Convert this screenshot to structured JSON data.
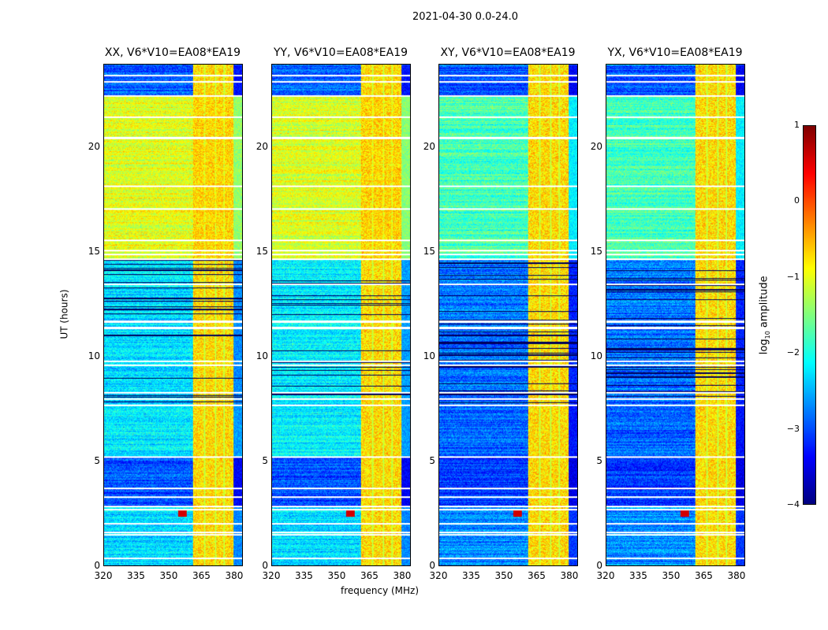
{
  "chart_data": {
    "type": "heatmap",
    "suptitle": "2021-04-30 0.0-24.0",
    "xlabel": "frequency (MHz)",
    "ylabel": "UT (hours)",
    "xlim": [
      320,
      384
    ],
    "ylim": [
      0,
      24
    ],
    "xticks": [
      "320",
      "335",
      "350",
      "365",
      "380"
    ],
    "yticks": [
      "0",
      "5",
      "10",
      "15",
      "20"
    ],
    "colorbar": {
      "label": "log10 amplitude",
      "label_main": "log",
      "label_sub": "10",
      "label_rest": " amplitude",
      "range": [
        -4,
        1
      ],
      "ticks": [
        "1",
        "0",
        "−1",
        "−2",
        "−3",
        "−4"
      ],
      "colormap": "jet"
    },
    "rfi_band_mhz": [
      [
        361,
        366
      ],
      [
        367,
        371
      ],
      [
        372,
        375
      ],
      [
        376,
        380
      ]
    ],
    "flagged_hours": [
      0.35,
      1.5,
      1.6,
      2.0,
      2.7,
      2.85,
      3.3,
      3.7,
      5.2,
      7.7,
      8.0,
      8.3,
      9.6,
      9.8,
      11.4,
      11.7,
      13.5,
      14.7,
      14.9,
      15.1,
      15.6,
      17.1,
      18.2,
      20.5,
      21.5,
      22.5,
      23.2,
      23.5
    ],
    "panels": [
      {
        "title": "XX, V6*V10=EA08*EA19",
        "segments": [
          [
            0,
            2.8,
            -2.3
          ],
          [
            2.8,
            5.2,
            -3.0
          ],
          [
            5.2,
            7.7,
            -2.2
          ],
          [
            7.7,
            14.7,
            -2.3
          ],
          [
            14.7,
            22.5,
            -1.0
          ],
          [
            22.5,
            24,
            -2.9
          ]
        ]
      },
      {
        "title": "YY, V6*V10=EA08*EA19",
        "segments": [
          [
            0,
            2.8,
            -2.3
          ],
          [
            2.8,
            5.2,
            -3.0
          ],
          [
            5.2,
            7.7,
            -2.2
          ],
          [
            7.7,
            14.7,
            -2.2
          ],
          [
            14.7,
            22.5,
            -1.05
          ],
          [
            22.5,
            24,
            -2.9
          ]
        ]
      },
      {
        "title": "XY, V6*V10=EA08*EA19",
        "segments": [
          [
            0,
            2.8,
            -2.7
          ],
          [
            2.8,
            5.2,
            -3.1
          ],
          [
            5.2,
            7.7,
            -2.9
          ],
          [
            7.7,
            14.7,
            -2.8
          ],
          [
            14.7,
            22.5,
            -1.8
          ],
          [
            22.5,
            24,
            -3.0
          ]
        ]
      },
      {
        "title": "YX, V6*V10=EA08*EA19",
        "segments": [
          [
            0,
            2.8,
            -2.7
          ],
          [
            2.8,
            5.2,
            -3.1
          ],
          [
            5.2,
            7.7,
            -2.9
          ],
          [
            7.7,
            14.7,
            -2.8
          ],
          [
            14.7,
            22.5,
            -1.8
          ],
          [
            22.5,
            24,
            -3.0
          ]
        ]
      }
    ]
  }
}
